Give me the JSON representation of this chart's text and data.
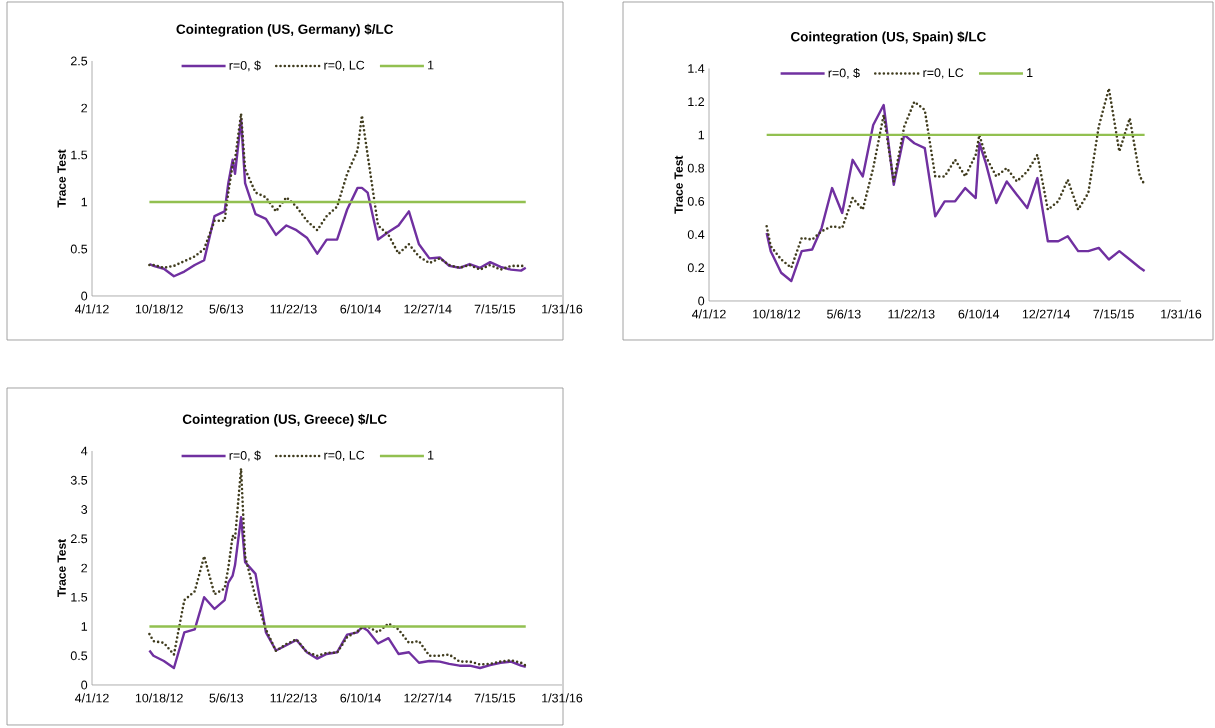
{
  "chart_data": [
    {
      "type": "line",
      "title": "Cointegration (US, Germany) $/LC",
      "ylabel": "Trace Test",
      "x": [
        "2012-09-19",
        "2012-10-01",
        "2012-11-01",
        "2012-12-01",
        "2013-01-01",
        "2013-02-01",
        "2013-03-01",
        "2013-04-01",
        "2013-05-01",
        "2013-05-12",
        "2013-05-25",
        "2013-06-01",
        "2013-06-19",
        "2013-07-01",
        "2013-08-01",
        "2013-09-01",
        "2013-10-01",
        "2013-11-01",
        "2013-12-01",
        "2014-01-01",
        "2014-02-01",
        "2014-03-01",
        "2014-04-01",
        "2014-05-01",
        "2014-06-01",
        "2014-06-14",
        "2014-07-01",
        "2014-08-01",
        "2014-09-01",
        "2014-10-01",
        "2014-11-01",
        "2014-12-01",
        "2015-01-01",
        "2015-02-01",
        "2015-03-01",
        "2015-04-01",
        "2015-05-01",
        "2015-06-01",
        "2015-07-01",
        "2015-08-01",
        "2015-09-01",
        "2015-10-01",
        "2015-10-15"
      ],
      "series": [
        {
          "name": "r=0, $",
          "color": "#7030a0",
          "line_style": "solid",
          "values": [
            0.34,
            0.32,
            0.29,
            0.21,
            0.26,
            0.33,
            0.38,
            0.85,
            0.9,
            1.2,
            1.45,
            1.3,
            1.88,
            1.2,
            0.87,
            0.82,
            0.65,
            0.75,
            0.7,
            0.62,
            0.45,
            0.6,
            0.6,
            0.92,
            1.15,
            1.15,
            1.1,
            0.6,
            0.68,
            0.75,
            0.9,
            0.55,
            0.4,
            0.41,
            0.32,
            0.3,
            0.34,
            0.3,
            0.36,
            0.31,
            0.28,
            0.27,
            0.3
          ]
        },
        {
          "name": "r=0, LC",
          "color": "#403c1e",
          "line_style": "dotted",
          "values": [
            0.33,
            0.33,
            0.3,
            0.32,
            0.37,
            0.42,
            0.5,
            0.8,
            0.8,
            1.1,
            1.4,
            1.45,
            1.94,
            1.35,
            1.1,
            1.05,
            0.9,
            1.05,
            0.95,
            0.8,
            0.7,
            0.85,
            0.95,
            1.3,
            1.55,
            1.92,
            1.5,
            0.75,
            0.65,
            0.45,
            0.55,
            0.42,
            0.35,
            0.4,
            0.33,
            0.3,
            0.33,
            0.28,
            0.33,
            0.28,
            0.32,
            0.32,
            0.32
          ]
        },
        {
          "name": "1",
          "color": "#92c050",
          "line_style": "solid",
          "values": [
            1,
            1,
            1,
            1,
            1,
            1,
            1,
            1,
            1,
            1,
            1,
            1,
            1,
            1,
            1,
            1,
            1,
            1,
            1,
            1,
            1,
            1,
            1,
            1,
            1,
            1,
            1,
            1,
            1,
            1,
            1,
            1,
            1,
            1,
            1,
            1,
            1,
            1,
            1,
            1,
            1,
            1,
            1
          ]
        }
      ],
      "xlim": [
        "2012-04-01",
        "2016-01-31"
      ],
      "xticks": [
        {
          "value": "2012-04-01",
          "label": "4/1/12"
        },
        {
          "value": "2012-10-18",
          "label": "10/18/12"
        },
        {
          "value": "2013-05-06",
          "label": "5/6/13"
        },
        {
          "value": "2013-11-22",
          "label": "11/22/13"
        },
        {
          "value": "2014-06-10",
          "label": "6/10/14"
        },
        {
          "value": "2014-12-27",
          "label": "12/27/14"
        },
        {
          "value": "2015-07-15",
          "label": "7/15/15"
        },
        {
          "value": "2016-01-31",
          "label": "1/31/16"
        }
      ],
      "ylim": [
        0,
        2.5
      ],
      "yticks": [
        0,
        0.5,
        1,
        1.5,
        2,
        2.5
      ],
      "legend": "top",
      "grid": false,
      "marker": "none"
    },
    {
      "type": "line",
      "title": "Cointegration (US, Spain) $/LC",
      "ylabel": "Trace Test",
      "x": [
        "2012-09-19",
        "2012-10-01",
        "2012-11-01",
        "2012-12-01",
        "2013-01-01",
        "2013-02-01",
        "2013-03-01",
        "2013-04-01",
        "2013-05-01",
        "2013-06-01",
        "2013-07-01",
        "2013-08-01",
        "2013-09-01",
        "2013-10-01",
        "2013-11-01",
        "2013-12-01",
        "2014-01-01",
        "2014-02-01",
        "2014-03-01",
        "2014-04-01",
        "2014-05-01",
        "2014-06-01",
        "2014-06-12",
        "2014-07-01",
        "2014-08-01",
        "2014-09-01",
        "2014-10-01",
        "2014-11-01",
        "2014-12-01",
        "2015-01-01",
        "2015-02-01",
        "2015-03-01",
        "2015-04-01",
        "2015-05-01",
        "2015-06-01",
        "2015-07-01",
        "2015-08-01",
        "2015-09-01",
        "2015-10-01",
        "2015-10-15"
      ],
      "series": [
        {
          "name": "r=0, $",
          "color": "#7030a0",
          "line_style": "solid",
          "values": [
            0.41,
            0.3,
            0.17,
            0.12,
            0.3,
            0.31,
            0.44,
            0.68,
            0.53,
            0.85,
            0.75,
            1.06,
            1.18,
            0.7,
            1.0,
            0.95,
            0.92,
            0.51,
            0.6,
            0.6,
            0.68,
            0.62,
            0.95,
            0.83,
            0.59,
            0.72,
            0.64,
            0.56,
            0.74,
            0.36,
            0.36,
            0.39,
            0.3,
            0.3,
            0.32,
            0.25,
            0.3,
            0.25,
            0.2,
            0.18
          ]
        },
        {
          "name": "r=0, LC",
          "color": "#403c1e",
          "line_style": "dotted",
          "values": [
            0.45,
            0.33,
            0.25,
            0.2,
            0.38,
            0.37,
            0.42,
            0.45,
            0.44,
            0.62,
            0.55,
            0.8,
            1.12,
            0.72,
            1.05,
            1.2,
            1.15,
            0.75,
            0.75,
            0.85,
            0.75,
            0.88,
            1.0,
            0.87,
            0.75,
            0.8,
            0.72,
            0.78,
            0.88,
            0.55,
            0.6,
            0.73,
            0.55,
            0.65,
            1.05,
            1.28,
            0.9,
            1.1,
            0.75,
            0.7
          ]
        },
        {
          "name": "1",
          "color": "#92c050",
          "line_style": "solid",
          "values": [
            1,
            1,
            1,
            1,
            1,
            1,
            1,
            1,
            1,
            1,
            1,
            1,
            1,
            1,
            1,
            1,
            1,
            1,
            1,
            1,
            1,
            1,
            1,
            1,
            1,
            1,
            1,
            1,
            1,
            1,
            1,
            1,
            1,
            1,
            1,
            1,
            1,
            1,
            1,
            1
          ]
        }
      ],
      "xlim": [
        "2012-04-01",
        "2016-01-31"
      ],
      "xticks": [
        {
          "value": "2012-04-01",
          "label": "4/1/12"
        },
        {
          "value": "2012-10-18",
          "label": "10/18/12"
        },
        {
          "value": "2013-05-06",
          "label": "5/6/13"
        },
        {
          "value": "2013-11-22",
          "label": "11/22/13"
        },
        {
          "value": "2014-06-10",
          "label": "6/10/14"
        },
        {
          "value": "2014-12-27",
          "label": "12/27/14"
        },
        {
          "value": "2015-07-15",
          "label": "7/15/15"
        },
        {
          "value": "2016-01-31",
          "label": "1/31/16"
        }
      ],
      "ylim": [
        0,
        1.4
      ],
      "yticks": [
        0,
        0.2,
        0.4,
        0.6,
        0.8,
        1,
        1.2,
        1.4
      ],
      "legend": "top",
      "grid": false,
      "marker": "none"
    },
    {
      "type": "line",
      "title": "Cointegration (US, Greece) $/LC",
      "ylabel": "Trace Test",
      "x": [
        "2012-09-19",
        "2012-10-01",
        "2012-11-01",
        "2012-12-01",
        "2013-01-01",
        "2013-02-01",
        "2013-03-01",
        "2013-04-01",
        "2013-05-01",
        "2013-05-12",
        "2013-05-25",
        "2013-06-01",
        "2013-06-19",
        "2013-07-01",
        "2013-08-01",
        "2013-09-01",
        "2013-10-01",
        "2013-11-01",
        "2013-12-01",
        "2014-01-01",
        "2014-02-01",
        "2014-03-01",
        "2014-04-01",
        "2014-05-01",
        "2014-06-01",
        "2014-06-14",
        "2014-07-01",
        "2014-08-01",
        "2014-09-01",
        "2014-10-01",
        "2014-11-01",
        "2014-12-01",
        "2015-01-01",
        "2015-02-01",
        "2015-03-01",
        "2015-04-01",
        "2015-05-01",
        "2015-06-01",
        "2015-07-01",
        "2015-08-01",
        "2015-09-01",
        "2015-10-01",
        "2015-10-15"
      ],
      "series": [
        {
          "name": "r=0, $",
          "color": "#7030a0",
          "line_style": "solid",
          "values": [
            0.59,
            0.5,
            0.41,
            0.29,
            0.9,
            0.95,
            1.5,
            1.3,
            1.45,
            1.75,
            1.87,
            2.05,
            2.87,
            2.1,
            1.9,
            0.9,
            0.59,
            0.68,
            0.77,
            0.56,
            0.45,
            0.53,
            0.56,
            0.86,
            0.9,
            0.99,
            0.93,
            0.71,
            0.8,
            0.53,
            0.56,
            0.38,
            0.41,
            0.4,
            0.36,
            0.33,
            0.33,
            0.29,
            0.34,
            0.38,
            0.4,
            0.33,
            0.31
          ]
        },
        {
          "name": "r=0, LC",
          "color": "#403c1e",
          "line_style": "dotted",
          "values": [
            0.87,
            0.75,
            0.72,
            0.52,
            1.45,
            1.6,
            2.2,
            1.55,
            1.65,
            2.0,
            2.55,
            2.5,
            3.7,
            2.2,
            1.5,
            0.95,
            0.58,
            0.7,
            0.78,
            0.56,
            0.5,
            0.55,
            0.55,
            0.82,
            0.92,
            0.98,
            1.0,
            0.9,
            1.05,
            0.95,
            0.72,
            0.75,
            0.5,
            0.5,
            0.52,
            0.4,
            0.4,
            0.35,
            0.36,
            0.4,
            0.42,
            0.38,
            0.33
          ]
        },
        {
          "name": "1",
          "color": "#92c050",
          "line_style": "solid",
          "values": [
            1,
            1,
            1,
            1,
            1,
            1,
            1,
            1,
            1,
            1,
            1,
            1,
            1,
            1,
            1,
            1,
            1,
            1,
            1,
            1,
            1,
            1,
            1,
            1,
            1,
            1,
            1,
            1,
            1,
            1,
            1,
            1,
            1,
            1,
            1,
            1,
            1,
            1,
            1,
            1,
            1,
            1,
            1
          ]
        }
      ],
      "xlim": [
        "2012-04-01",
        "2016-01-31"
      ],
      "xticks": [
        {
          "value": "2012-04-01",
          "label": "4/1/12"
        },
        {
          "value": "2012-10-18",
          "label": "10/18/12"
        },
        {
          "value": "2013-05-06",
          "label": "5/6/13"
        },
        {
          "value": "2013-11-22",
          "label": "11/22/13"
        },
        {
          "value": "2014-06-10",
          "label": "6/10/14"
        },
        {
          "value": "2014-12-27",
          "label": "12/27/14"
        },
        {
          "value": "2015-07-15",
          "label": "7/15/15"
        },
        {
          "value": "2016-01-31",
          "label": "1/31/16"
        }
      ],
      "ylim": [
        0,
        4
      ],
      "yticks": [
        0,
        0.5,
        1,
        1.5,
        2,
        2.5,
        3,
        3.5,
        4
      ],
      "legend": "top",
      "grid": false,
      "marker": "none"
    }
  ]
}
